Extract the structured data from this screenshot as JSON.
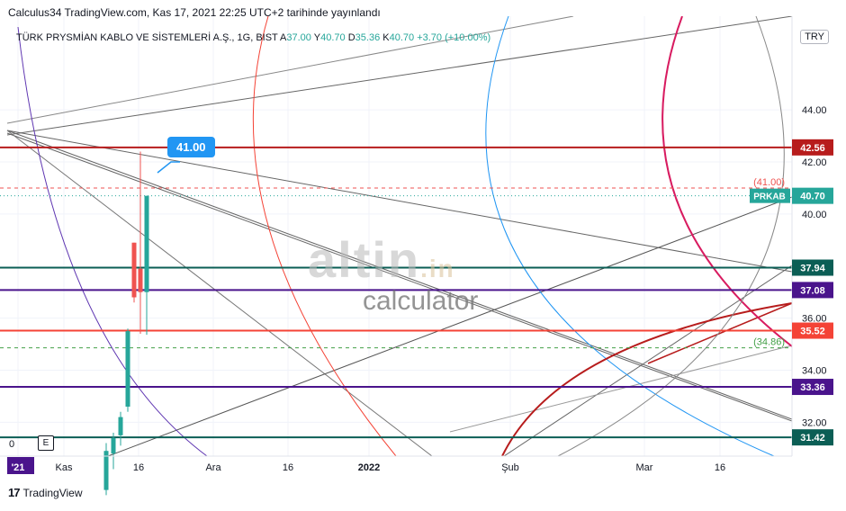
{
  "caption": "Calculus34 TradingView.com, Kas 17, 2021 22:25 UTC+2 tarihinde yayınlandı",
  "symbol": {
    "name": "TÜRK PRYSMİAN KABLO VE SİSTEMLERİ A.Ş., 1G, BIST",
    "open_label": "A",
    "open": "37.00",
    "high_label": "Y",
    "high": "40.70",
    "low_label": "D",
    "low": "35.36",
    "close_label": "K",
    "close": "40.70",
    "change": "+3.70 (+10.00%)"
  },
  "currency": "TRY",
  "zero_label": "0",
  "e_button": "E",
  "watermark": {
    "logo": "altin",
    "logo_suffix": ".in",
    "text": "calculator"
  },
  "callout": "41.00",
  "footer": "TradingView",
  "colors": {
    "up": "#26a69a",
    "down": "#ef5350",
    "dark_red": "#b71c1c",
    "dark_teal": "#0b5e55",
    "purple": "#4a148c",
    "red": "#f44336",
    "magenta": "#d81b60",
    "blue": "#2196f3",
    "grey": "#757575"
  },
  "chart_data": {
    "type": "candlestick",
    "ylim": [
      30.7,
      47.6
    ],
    "y_ticks": [
      32.0,
      34.0,
      36.0,
      40.0,
      42.0,
      44.0
    ],
    "y_tick_labels": [
      "32.00",
      "34.00",
      "36.00",
      "40.00",
      "42.00",
      "44.00"
    ],
    "x_tick_labels": [
      "'21",
      "Kas",
      "16",
      "Ara",
      "16",
      "2022",
      "Şub",
      "Mar",
      "16"
    ],
    "candles": [
      {
        "o": 29.4,
        "h": 31.2,
        "l": 29.2,
        "c": 30.9
      },
      {
        "o": 30.8,
        "h": 31.6,
        "l": 30.2,
        "c": 31.4
      },
      {
        "o": 31.5,
        "h": 32.4,
        "l": 31.1,
        "c": 32.2
      },
      {
        "o": 32.6,
        "h": 35.6,
        "l": 32.4,
        "c": 35.5
      },
      {
        "o": 38.9,
        "h": 38.9,
        "l": 36.6,
        "c": 36.8
      },
      {
        "o": 37.9,
        "h": 42.4,
        "l": 35.4,
        "c": 37.0
      },
      {
        "o": 37.0,
        "h": 40.7,
        "l": 35.36,
        "c": 40.7
      }
    ],
    "horizontal_levels": [
      {
        "value": 42.56,
        "label": "42.56",
        "color": "#b71c1c"
      },
      {
        "value": 37.94,
        "label": "37.94",
        "color": "#0b5e55"
      },
      {
        "value": 37.08,
        "label": "37.08",
        "color": "#4a148c"
      },
      {
        "value": 35.52,
        "label": "35.52",
        "color": "#f44336"
      },
      {
        "value": 33.36,
        "label": "33.36",
        "color": "#4a148c"
      },
      {
        "value": 31.42,
        "label": "31.42",
        "color": "#0b5e55"
      }
    ],
    "dashed_levels": [
      {
        "value": 41.0,
        "label": "(41.00)",
        "color": "#ef5350"
      },
      {
        "value": 34.86,
        "label": "(34.86)",
        "color": "#43a047"
      }
    ],
    "last_price": {
      "value": 40.7,
      "symbol_label": "PRKAB",
      "label": "40.70"
    }
  }
}
